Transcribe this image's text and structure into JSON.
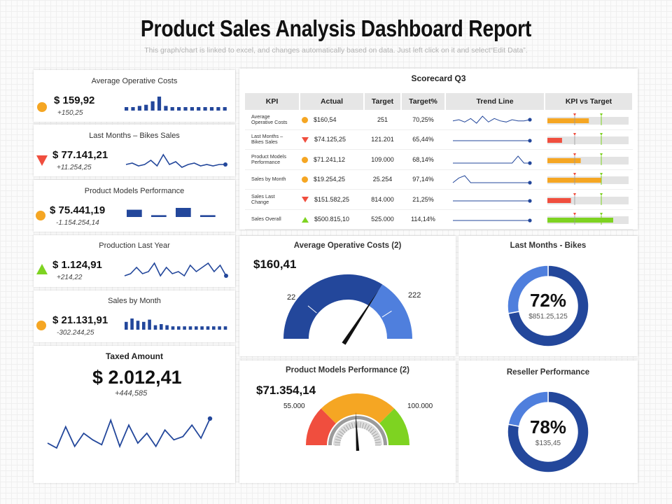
{
  "header": {
    "title": "Product Sales Analysis Dashboard Report",
    "subtitle": "This graph/chart is linked to excel, and changes automatically based on data. Just left click on it and select“Edit Data”."
  },
  "colors": {
    "navy": "#23479b",
    "blue": "#4f7fdd",
    "orange": "#f5a623",
    "red": "#f04e3e",
    "green": "#7ed321",
    "grey": "#e0e0e0"
  },
  "kpi_cards": [
    {
      "title": "Average Operative Costs",
      "value": "$ 159,92",
      "delta": "+150,25",
      "indicator": "circle-icon",
      "spark": "bars",
      "data": [
        3,
        3,
        4,
        5,
        8,
        12,
        4,
        3,
        3,
        3,
        3,
        3,
        3,
        3,
        3,
        3
      ]
    },
    {
      "title": "Last Months – Bikes Sales",
      "value": "$ 77.141,21",
      "delta": "+11.254,25",
      "indicator": "triangle-down-icon",
      "spark": "line",
      "data": [
        5,
        6,
        4,
        5,
        8,
        4,
        12,
        5,
        7,
        3,
        5,
        6,
        4,
        5,
        4,
        5,
        5
      ]
    },
    {
      "title": "Product Models Performance",
      "value": "$ 75.441,19",
      "delta": "-1.154.254,14",
      "indicator": "circle-icon",
      "spark": "blocks",
      "data": [
        8,
        2,
        10,
        2
      ]
    },
    {
      "title": "Production Last Year",
      "value": "$ 1.124,91",
      "delta": "+214,22",
      "indicator": "triangle-up-icon",
      "spark": "line",
      "data": [
        4,
        5,
        8,
        5,
        6,
        10,
        4,
        8,
        5,
        6,
        4,
        9,
        6,
        8,
        10,
        6,
        9,
        4
      ]
    },
    {
      "title": "Sales by Month",
      "value": "$ 21.131,91",
      "delta": "-302.244,25",
      "indicator": "circle-icon",
      "spark": "bars",
      "data": [
        7,
        10,
        8,
        7,
        9,
        4,
        5,
        4,
        3,
        3,
        3,
        3,
        3,
        3,
        3,
        3,
        3,
        3
      ]
    }
  ],
  "taxed": {
    "title": "Taxed Amount",
    "value": "$ 2.012,41",
    "delta": "+444,585",
    "data": [
      8,
      5,
      18,
      6,
      14,
      10,
      7,
      22,
      6,
      19,
      8,
      14,
      6,
      16,
      10,
      12,
      19,
      11,
      23
    ]
  },
  "scorecard": {
    "title": "Scorecard Q3",
    "columns": [
      "KPI",
      "Actual",
      "Target",
      "Target%",
      "Trend Line",
      "KPI vs Target"
    ],
    "rows": [
      {
        "kpi": [
          "Average",
          "Operative Costs"
        ],
        "indicator": "dot",
        "actual": "$160,54",
        "target": "251",
        "pct": "70,25%",
        "bar_color": "#f5a623",
        "fill": 0.51,
        "trend": [
          5,
          6,
          4,
          7,
          3,
          9,
          4,
          7,
          5,
          4,
          6,
          5,
          5,
          6
        ]
      },
      {
        "kpi": [
          "Last Months –",
          "Bikes Sales"
        ],
        "indicator": "down",
        "actual": "$74.125,25",
        "target": "121.201",
        "pct": "65,44%",
        "bar_color": "#f04e3e",
        "fill": 0.18,
        "trend": [
          5,
          5,
          5,
          5,
          5,
          5,
          5,
          5,
          5,
          5,
          5,
          5,
          5,
          5
        ]
      },
      {
        "kpi": [
          "Product Models",
          "Performance"
        ],
        "indicator": "dot",
        "actual": "$71.241,12",
        "target": "109.000",
        "pct": "68,14%",
        "bar_color": "#f5a623",
        "fill": 0.41,
        "trend": [
          5,
          5,
          5,
          5,
          5,
          5,
          5,
          5,
          5,
          5,
          5,
          11,
          5,
          5
        ]
      },
      {
        "kpi": [
          "Sales by Month"
        ],
        "indicator": "dot",
        "actual": "$19.254,25",
        "target": "25.254",
        "pct": "97,14%",
        "bar_color": "#f5a623",
        "fill": 0.66,
        "trend": [
          5,
          7,
          8,
          5,
          5,
          5,
          5,
          5,
          5,
          5,
          5,
          5,
          5,
          5
        ]
      },
      {
        "kpi": [
          "Sales Last",
          "Change"
        ],
        "indicator": "down",
        "actual": "$151.582,25",
        "target": "814.000",
        "pct": "21,25%",
        "bar_color": "#f04e3e",
        "fill": 0.29,
        "trend": [
          5,
          5,
          5,
          5,
          5,
          5,
          5,
          5,
          5,
          5,
          5,
          5,
          5,
          5
        ]
      },
      {
        "kpi": [
          "Sales Overall"
        ],
        "indicator": "up",
        "actual": "$500.815,10",
        "target": "525.000",
        "pct": "114,14%",
        "bar_color": "#7ed321",
        "fill": 0.81,
        "trend": [
          5,
          5,
          5,
          5,
          5,
          5,
          5,
          5,
          5,
          5,
          5,
          5,
          5,
          5
        ]
      }
    ]
  },
  "gauge1": {
    "title": "Average Operative Costs (2)",
    "value": "$160,41",
    "min_label": "22",
    "max_label": "222",
    "needle_fraction": 0.68
  },
  "gauge2": {
    "title": "Product Models Performance (2)",
    "value": "$71.354,14",
    "min_label": "55.000",
    "max_label": "100.000",
    "needle_fraction": 0.48
  },
  "donut1": {
    "title": "Last Months - Bikes",
    "percent": "72%",
    "amount": "$851.25,125",
    "fraction": 0.72
  },
  "donut2": {
    "title": "Reseller Performance",
    "percent": "78%",
    "amount": "$135,45",
    "fraction": 0.78
  }
}
